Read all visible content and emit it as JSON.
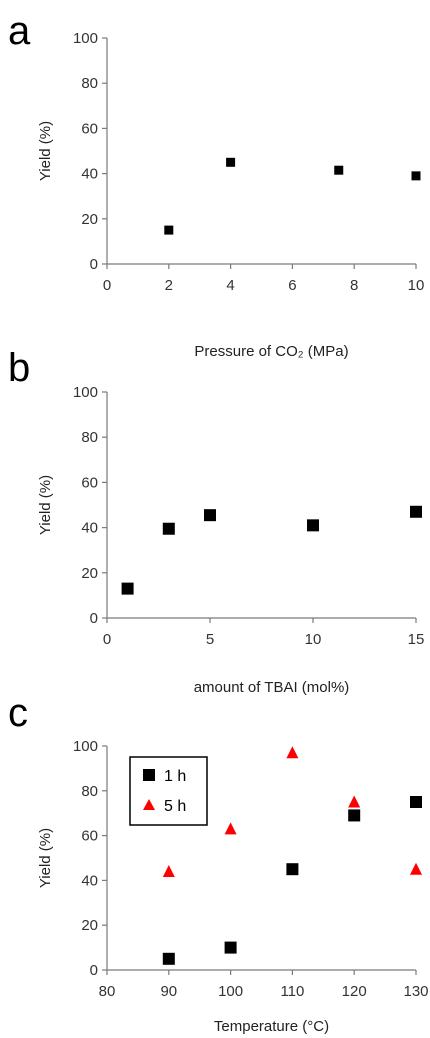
{
  "chart_data": [
    {
      "panel": "a",
      "type": "scatter",
      "xlabel": "Pressure of CO₂ (MPa)",
      "ylabel": "Yield (%)",
      "xlim": [
        0,
        10
      ],
      "ylim": [
        0,
        100
      ],
      "xticks": [
        0,
        2,
        4,
        6,
        8,
        10
      ],
      "yticks": [
        0,
        20,
        40,
        60,
        80,
        100
      ],
      "grid": false,
      "series": [
        {
          "marker": "square",
          "color": "#000000",
          "points": [
            [
              2,
              15
            ],
            [
              4,
              45
            ],
            [
              7.5,
              41.5
            ],
            [
              10,
              39
            ]
          ]
        }
      ]
    },
    {
      "panel": "b",
      "type": "scatter",
      "xlabel": "amount of TBAI (mol%)",
      "ylabel": "Yield (%)",
      "xlim": [
        0,
        15
      ],
      "ylim": [
        0,
        100
      ],
      "xticks": [
        0,
        5,
        10,
        15
      ],
      "yticks": [
        0,
        20,
        40,
        60,
        80,
        100
      ],
      "grid": false,
      "series": [
        {
          "marker": "square",
          "color": "#000000",
          "points": [
            [
              1,
              13
            ],
            [
              3,
              39.5
            ],
            [
              5,
              45.5
            ],
            [
              10,
              41
            ],
            [
              15,
              47
            ]
          ]
        }
      ]
    },
    {
      "panel": "c",
      "type": "scatter",
      "xlabel": "Temperature (°C)",
      "ylabel": "Yield (%)",
      "xlim": [
        80,
        130
      ],
      "ylim": [
        0,
        100
      ],
      "xticks": [
        80,
        90,
        100,
        110,
        120,
        130
      ],
      "yticks": [
        0,
        20,
        40,
        60,
        80,
        100
      ],
      "grid": false,
      "legend": "top-left",
      "series": [
        {
          "name": "1 h",
          "marker": "square",
          "color": "#000000",
          "points": [
            [
              90,
              5
            ],
            [
              100,
              10
            ],
            [
              110,
              45
            ],
            [
              120,
              69
            ],
            [
              130,
              75
            ]
          ]
        },
        {
          "name": "5 h",
          "marker": "triangle",
          "color": "#ff0000",
          "points": [
            [
              90,
              44
            ],
            [
              100,
              63
            ],
            [
              110,
              97
            ],
            [
              120,
              75
            ],
            [
              130,
              45
            ]
          ]
        }
      ]
    }
  ]
}
